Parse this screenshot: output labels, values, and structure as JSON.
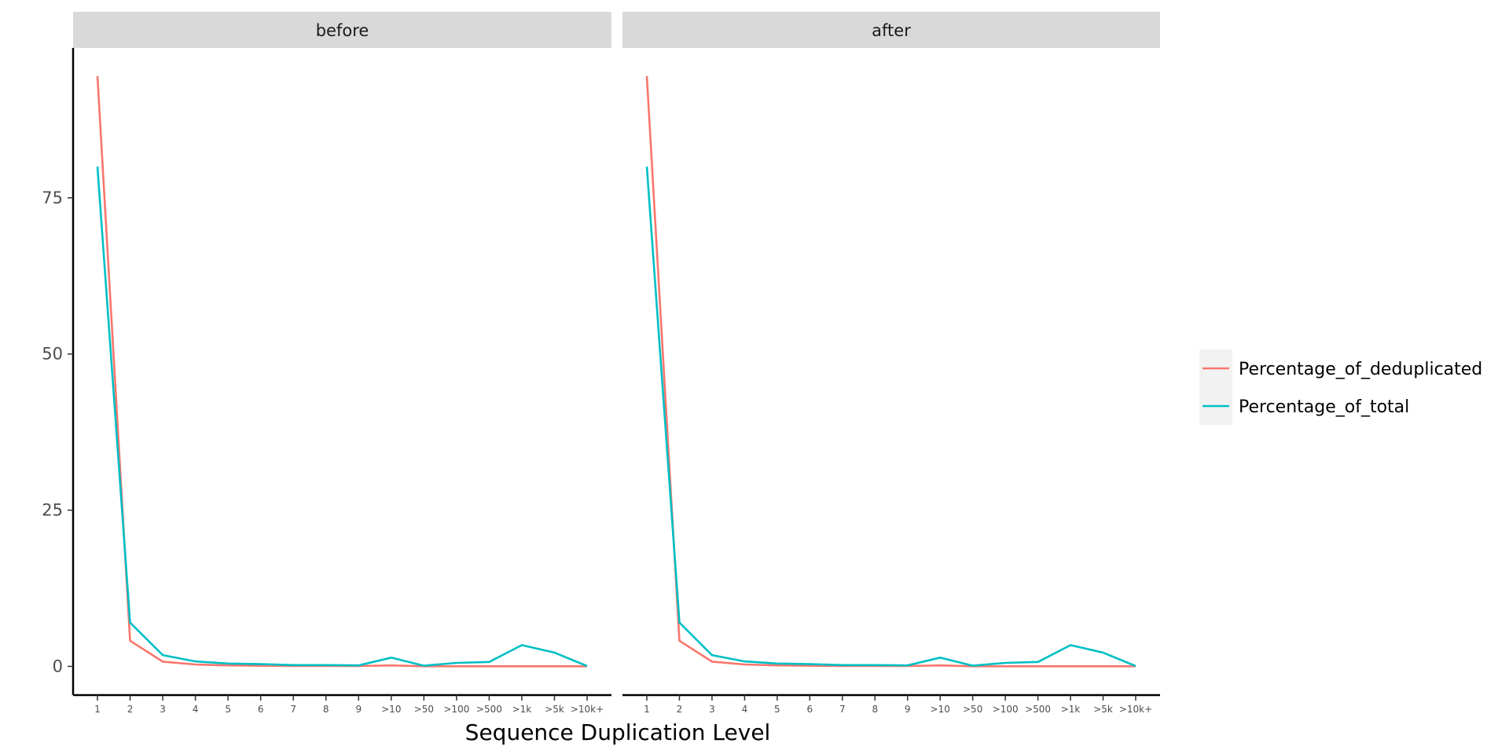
{
  "chart_data": {
    "type": "line",
    "xlabel": "Sequence Duplication Level",
    "ylabel": "",
    "categories": [
      "1",
      "2",
      "3",
      "4",
      "5",
      "6",
      "7",
      "8",
      "9",
      ">10",
      ">50",
      ">100",
      ">500",
      ">1k",
      ">5k",
      ">10k+"
    ],
    "ylim": [
      -4.6,
      99
    ],
    "yticks": [
      0,
      25,
      50,
      75
    ],
    "grid": false,
    "legend_position": "right",
    "panels": [
      {
        "label": "before",
        "series": [
          {
            "name": "Percentage_of_deduplicated",
            "color": "#F8766D",
            "values": [
              94.5,
              4.1,
              0.75,
              0.3,
              0.15,
              0.1,
              0.05,
              0.05,
              0.05,
              0.15,
              0.02,
              0.02,
              0.02,
              0.02,
              0.02,
              0.01
            ]
          },
          {
            "name": "Percentage_of_total",
            "color": "#00BFC4",
            "values": [
              80.0,
              7.0,
              1.8,
              0.8,
              0.45,
              0.35,
              0.2,
              0.2,
              0.15,
              1.4,
              0.1,
              0.55,
              0.7,
              3.4,
              2.2,
              0.05
            ]
          }
        ]
      },
      {
        "label": "after",
        "series": [
          {
            "name": "Percentage_of_deduplicated",
            "color": "#F8766D",
            "values": [
              94.5,
              4.1,
              0.75,
              0.3,
              0.15,
              0.1,
              0.05,
              0.05,
              0.05,
              0.15,
              0.02,
              0.02,
              0.02,
              0.02,
              0.02,
              0.01
            ]
          },
          {
            "name": "Percentage_of_total",
            "color": "#00BFC4",
            "values": [
              80.0,
              7.0,
              1.8,
              0.8,
              0.45,
              0.35,
              0.2,
              0.2,
              0.15,
              1.4,
              0.1,
              0.55,
              0.7,
              3.4,
              2.2,
              0.05
            ]
          }
        ]
      }
    ],
    "legend": [
      {
        "name": "Percentage_of_deduplicated",
        "color": "#F8766D"
      },
      {
        "name": "Percentage_of_total",
        "color": "#00BFC4"
      }
    ]
  }
}
